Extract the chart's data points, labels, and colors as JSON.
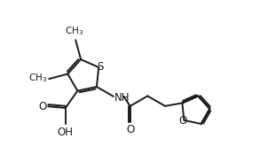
{
  "background_color": "#ffffff",
  "line_color": "#1a1a1a",
  "line_width": 1.4,
  "font_size": 8.5,
  "fig_width": 3.11,
  "fig_height": 1.83,
  "dpi": 100,
  "xlim": [
    0,
    10
  ],
  "ylim": [
    0,
    6
  ]
}
